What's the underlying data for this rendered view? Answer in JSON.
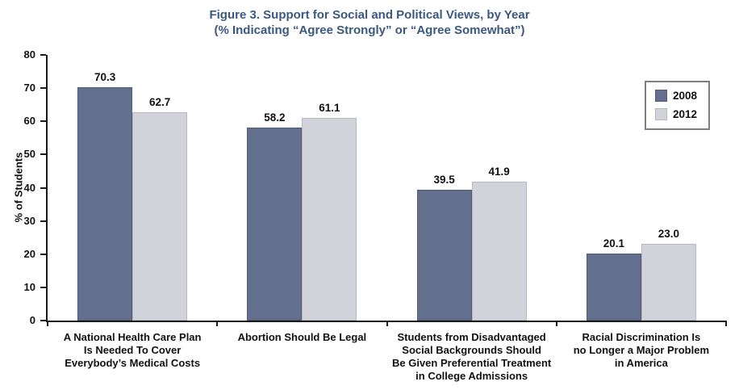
{
  "title": {
    "line1": "Figure 3. Support for Social and Political Views, by Year",
    "line2": "(% Indicating “Agree Strongly” or “Agree Somewhat”)",
    "color": "#3b5880"
  },
  "colors": {
    "axis": "#1a1a1a",
    "text": "#111111",
    "legend_border": "#7f7f7f",
    "background": "#ffffff"
  },
  "chart_data": {
    "type": "bar",
    "title": "Figure 3. Support for Social and Political Views, by Year (% Indicating “Agree Strongly” or “Agree Somewhat”)",
    "categories": [
      "A National Health Care Plan\nIs Needed To Cover\nEverybody’s Medical Costs",
      "Abortion Should Be Legal",
      "Students from Disadvantaged\nSocial Backgrounds Should\nBe Given Preferential Treatment\nin College Admissions",
      "Racial Discrimination Is\nno Longer a Major Problem\nin America"
    ],
    "series": [
      {
        "name": "2008",
        "values": [
          70.3,
          58.2,
          39.5,
          20.1
        ],
        "color": "#62708e",
        "border_color": "#4e5c78"
      },
      {
        "name": "2012",
        "values": [
          62.7,
          61.1,
          41.9,
          23.0
        ],
        "color": "#d1d2da",
        "border_color": "#b6b8c3"
      }
    ],
    "xlabel": "",
    "ylabel": "% of Students",
    "ylim": [
      0,
      80
    ],
    "ytick_step": 10,
    "grid": false,
    "legend_position": "upper right",
    "value_label_decimals": 1
  }
}
